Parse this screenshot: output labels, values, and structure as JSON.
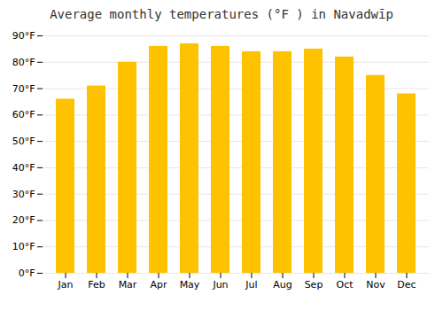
{
  "chart_data": {
    "type": "bar",
    "title": "Average monthly temperatures (°F ) in Navadwīp",
    "categories": [
      "Jan",
      "Feb",
      "Mar",
      "Apr",
      "May",
      "Jun",
      "Jul",
      "Aug",
      "Sep",
      "Oct",
      "Nov",
      "Dec"
    ],
    "values": [
      66,
      71,
      80,
      86,
      87,
      86,
      84,
      84,
      85,
      82,
      75,
      68
    ],
    "color": "#FFC200",
    "ylim": [
      0,
      90
    ],
    "yticks": [
      {
        "value": 0,
        "label": "0°F"
      },
      {
        "value": 10,
        "label": "10°F"
      },
      {
        "value": 20,
        "label": "20°F"
      },
      {
        "value": 30,
        "label": "30°F"
      },
      {
        "value": 40,
        "label": "40°F"
      },
      {
        "value": 50,
        "label": "50°F"
      },
      {
        "value": 60,
        "label": "60°F"
      },
      {
        "value": 70,
        "label": "70°F"
      },
      {
        "value": 80,
        "label": "80°F"
      },
      {
        "value": 90,
        "label": "90°F"
      }
    ],
    "grid": true
  }
}
